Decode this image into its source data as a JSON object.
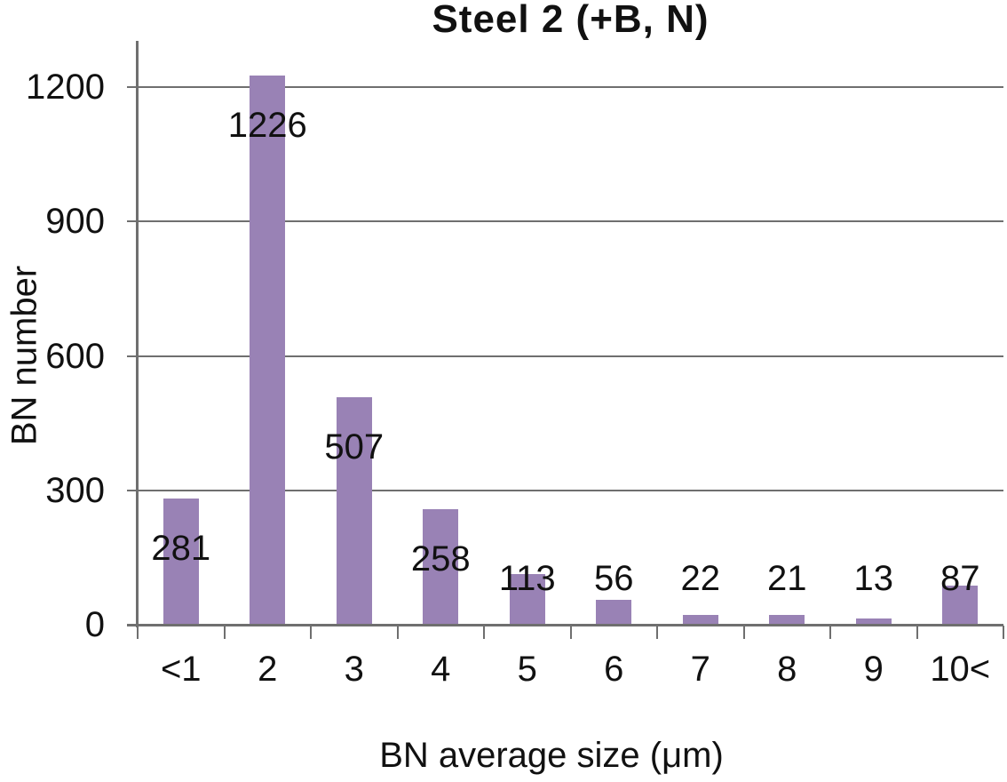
{
  "chart_data": {
    "type": "bar",
    "title": "Steel 2 (+B, N)",
    "xlabel": "BN average size (μm)",
    "ylabel": "BN number",
    "categories": [
      "<1",
      "2",
      "3",
      "4",
      "5",
      "6",
      "7",
      "8",
      "9",
      "10<"
    ],
    "values": [
      281,
      1226,
      507,
      258,
      113,
      56,
      22,
      21,
      13,
      87
    ],
    "data_labels": [
      "281",
      "1226",
      "507",
      "258",
      "113",
      "56",
      "22",
      "21",
      "13",
      "87"
    ],
    "ylim": [
      0,
      1200
    ],
    "yticks": [
      0,
      300,
      600,
      900,
      1200
    ],
    "grid": "horizontal gridlines at every y tick, drawn behind bars",
    "legend": "none",
    "colors": {
      "bar": "#9982b5",
      "axis": "#6f6f6f",
      "gridline": "#6f6f6f",
      "text": "#111111",
      "background": "#ffffff"
    }
  }
}
